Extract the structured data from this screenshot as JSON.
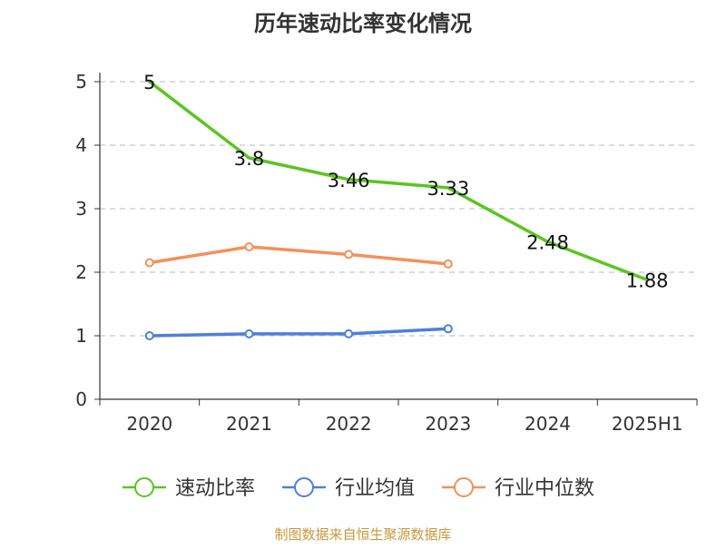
{
  "chart_data": {
    "type": "line",
    "title": "历年速动比率变化情况",
    "source": "制图数据来自恒生聚源数据库",
    "categories": [
      "2020",
      "2021",
      "2022",
      "2023",
      "2024",
      "2025H1"
    ],
    "yticks": [
      "0",
      "1",
      "2",
      "3",
      "4",
      "5"
    ],
    "ylim": [
      0,
      5
    ],
    "grid": true,
    "legend_position": "bottom",
    "series": [
      {
        "name": "速动比率",
        "color": "#5cc423",
        "values": [
          5,
          3.8,
          3.46,
          3.33,
          2.48,
          1.88
        ],
        "labels": [
          "5",
          "3.8",
          "3.46",
          "3.33",
          "2.48",
          "1.88"
        ],
        "show_labels": true,
        "show_markers": false
      },
      {
        "name": "行业均值",
        "color": "#4e7fdc",
        "values": [
          1.0,
          1.03,
          1.03,
          1.11,
          null,
          null
        ],
        "show_labels": false,
        "show_markers": true
      },
      {
        "name": "行业中位数",
        "color": "#f4905a",
        "values": [
          2.15,
          2.4,
          2.28,
          2.13,
          null,
          null
        ],
        "show_labels": false,
        "show_markers": true
      }
    ]
  }
}
